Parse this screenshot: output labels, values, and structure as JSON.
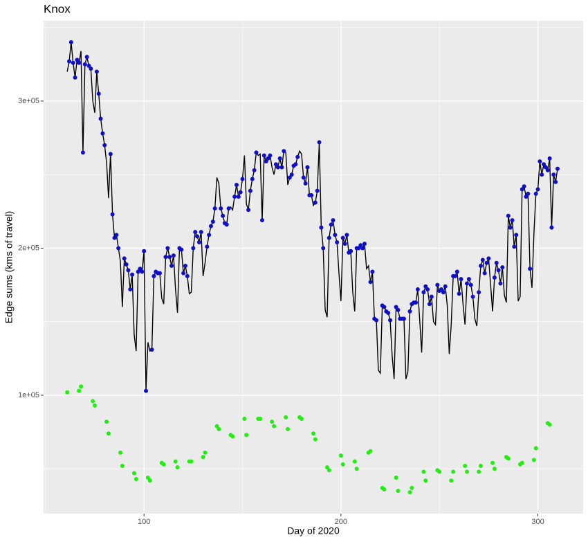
{
  "chart_data": {
    "type": "line",
    "title": "Knox",
    "x_label": "Day of 2020",
    "y_label": "Edge sums (kms of travel)",
    "xlim": [
      49,
      323
    ],
    "xticks": [
      100,
      200,
      300
    ],
    "minor_xticks": [
      50,
      150,
      250
    ],
    "ylim": [
      19500,
      354600
    ],
    "yticks": [
      {
        "value": 100000,
        "label": "1e+05"
      },
      {
        "value": 200000,
        "label": "2e+05"
      },
      {
        "value": 300000,
        "label": "3e+05"
      }
    ],
    "minor_yticks": [
      50000,
      150000,
      250000,
      350000
    ],
    "grid": true,
    "series": [
      {
        "mark": "line",
        "color": "#000000",
        "x": [
          61,
          62,
          63,
          64,
          65,
          66,
          67,
          68,
          69,
          70,
          71,
          72,
          73,
          74,
          75,
          76,
          77,
          78,
          79,
          80,
          81,
          82,
          83,
          84,
          85,
          86,
          87,
          88,
          89,
          90,
          91,
          92,
          93,
          94,
          95,
          96,
          97,
          98,
          99,
          100,
          101,
          102,
          103,
          104,
          105,
          106,
          107,
          108,
          109,
          110,
          111,
          112,
          113,
          114,
          115,
          116,
          117,
          118,
          119,
          120,
          121,
          122,
          123,
          124,
          125,
          126,
          127,
          128,
          129,
          130,
          131,
          132,
          133,
          134,
          135,
          136,
          137,
          138,
          139,
          140,
          141,
          142,
          143,
          144,
          145,
          146,
          147,
          148,
          149,
          150,
          151,
          152,
          153,
          154,
          155,
          156,
          157,
          158,
          159,
          160,
          161,
          162,
          163,
          164,
          165,
          166,
          167,
          168,
          169,
          170,
          171,
          172,
          173,
          174,
          175,
          176,
          177,
          178,
          179,
          180,
          181,
          182,
          183,
          184,
          185,
          186,
          187,
          188,
          189,
          190,
          191,
          192,
          193,
          194,
          195,
          196,
          197,
          198,
          199,
          200,
          201,
          202,
          203,
          204,
          205,
          206,
          207,
          208,
          209,
          210,
          211,
          212,
          213,
          214,
          215,
          216,
          217,
          218,
          219,
          220,
          221,
          222,
          223,
          224,
          225,
          226,
          227,
          228,
          229,
          230,
          231,
          232,
          233,
          234,
          235,
          236,
          237,
          238,
          239,
          240,
          241,
          242,
          243,
          244,
          245,
          246,
          247,
          248,
          249,
          250,
          251,
          252,
          253,
          254,
          255,
          256,
          257,
          258,
          259,
          260,
          261,
          262,
          263,
          264,
          265,
          266,
          267,
          268,
          269,
          270,
          271,
          272,
          273,
          274,
          275,
          276,
          277,
          278,
          279,
          280,
          281,
          282,
          283,
          284,
          285,
          286,
          287,
          288,
          289,
          290,
          291,
          292,
          293,
          294,
          295,
          296,
          297,
          298,
          299,
          300,
          301,
          302,
          303,
          304,
          305,
          306,
          307,
          308,
          309,
          310
        ],
        "values": [
          320000,
          327000,
          340000,
          326000,
          316000,
          328000,
          326000,
          334000,
          265000,
          325000,
          330000,
          324000,
          322000,
          300000,
          292000,
          320000,
          305000,
          288000,
          278000,
          270000,
          258000,
          234000,
          264000,
          223000,
          207000,
          209000,
          200000,
          191000,
          160000,
          193000,
          189000,
          185000,
          172000,
          182000,
          141000,
          130000,
          184000,
          186000,
          184000,
          198000,
          103000,
          136000,
          130000,
          131000,
          181000,
          184000,
          183000,
          183000,
          166000,
          162000,
          194000,
          200000,
          194000,
          188000,
          195000,
          172000,
          156000,
          200000,
          199000,
          183000,
          188000,
          181000,
          169000,
          170000,
          200000,
          211000,
          208000,
          204000,
          211000,
          181000,
          190000,
          201000,
          209000,
          215000,
          218000,
          227000,
          248000,
          244000,
          227000,
          222000,
          217000,
          216000,
          227000,
          228000,
          226000,
          235000,
          243000,
          235000,
          238000,
          247000,
          263000,
          230000,
          226000,
          239000,
          247000,
          253000,
          265000,
          263000,
          264000,
          219000,
          263000,
          259000,
          261000,
          263000,
          255000,
          250000,
          257000,
          255000,
          261000,
          255000,
          266000,
          265000,
          243000,
          248000,
          250000,
          256000,
          257000,
          262000,
          266000,
          264000,
          248000,
          244000,
          255000,
          236000,
          236000,
          229000,
          231000,
          239000,
          272000,
          214000,
          200000,
          158000,
          153000,
          207000,
          216000,
          219000,
          209000,
          204000,
          183000,
          164000,
          207000,
          203000,
          209000,
          197000,
          198000,
          170000,
          157000,
          200000,
          200000,
          202000,
          200000,
          203000,
          186000,
          188000,
          177000,
          184000,
          152000,
          151000,
          117000,
          115000,
          161000,
          160000,
          157000,
          156000,
          151000,
          127000,
          111000,
          160000,
          158000,
          152000,
          152000,
          152000,
          111000,
          116000,
          157000,
          162000,
          163000,
          163000,
          172000,
          151000,
          129000,
          170000,
          174000,
          172000,
          162000,
          167000,
          150000,
          148000,
          175000,
          171000,
          172000,
          170000,
          174000,
          161000,
          128000,
          148000,
          181000,
          181000,
          184000,
          169000,
          179000,
          162000,
          148000,
          176000,
          179000,
          175000,
          167000,
          152000,
          147000,
          170000,
          188000,
          192000,
          183000,
          190000,
          193000,
          175000,
          157000,
          180000,
          190000,
          185000,
          176000,
          187000,
          168000,
          163000,
          222000,
          214000,
          219000,
          201000,
          209000,
          164000,
          167000,
          240000,
          242000,
          235000,
          237000,
          186000,
          173000,
          210000,
          237000,
          240000,
          259000,
          250000,
          257000,
          255000,
          253000,
          261000,
          214000,
          250000,
          245000,
          254000
        ]
      },
      {
        "mark": "point",
        "color": "#0f0fc8",
        "x": [
          62,
          63,
          64,
          65,
          66,
          67,
          69,
          70,
          71,
          72,
          73,
          76,
          77,
          78,
          79,
          80,
          83,
          84,
          85,
          86,
          87,
          90,
          91,
          92,
          93,
          94,
          97,
          98,
          99,
          100,
          101,
          104,
          105,
          106,
          107,
          108,
          111,
          112,
          113,
          114,
          115,
          118,
          119,
          120,
          121,
          122,
          125,
          126,
          127,
          128,
          129,
          132,
          133,
          134,
          135,
          136,
          139,
          140,
          141,
          142,
          143,
          146,
          147,
          148,
          149,
          150,
          153,
          154,
          155,
          156,
          157,
          160,
          161,
          162,
          163,
          164,
          167,
          168,
          169,
          170,
          171,
          174,
          175,
          176,
          177,
          178,
          181,
          182,
          183,
          184,
          185,
          187,
          188,
          189,
          190,
          191,
          194,
          195,
          196,
          197,
          198,
          201,
          202,
          203,
          204,
          205,
          208,
          209,
          210,
          211,
          212,
          215,
          216,
          217,
          218,
          221,
          222,
          223,
          224,
          225,
          228,
          229,
          230,
          231,
          232,
          235,
          236,
          237,
          238,
          239,
          242,
          243,
          244,
          245,
          246,
          249,
          250,
          251,
          252,
          253,
          257,
          258,
          259,
          260,
          261,
          264,
          265,
          266,
          267,
          270,
          271,
          272,
          273,
          274,
          275,
          278,
          279,
          280,
          281,
          282,
          285,
          286,
          287,
          288,
          289,
          292,
          293,
          294,
          295,
          296,
          299,
          300,
          301,
          302,
          303,
          304,
          305,
          306,
          307,
          308,
          309,
          310
        ],
        "values": [
          327000,
          340000,
          326000,
          316000,
          328000,
          326000,
          265000,
          325000,
          330000,
          324000,
          322000,
          320000,
          305000,
          288000,
          278000,
          270000,
          264000,
          223000,
          207000,
          209000,
          200000,
          193000,
          189000,
          185000,
          172000,
          182000,
          184000,
          186000,
          184000,
          198000,
          103000,
          131000,
          181000,
          184000,
          183000,
          183000,
          194000,
          200000,
          194000,
          188000,
          195000,
          200000,
          199000,
          183000,
          188000,
          181000,
          200000,
          211000,
          208000,
          204000,
          211000,
          201000,
          209000,
          215000,
          218000,
          227000,
          227000,
          222000,
          217000,
          216000,
          227000,
          235000,
          243000,
          235000,
          238000,
          247000,
          226000,
          239000,
          247000,
          253000,
          265000,
          219000,
          263000,
          259000,
          261000,
          263000,
          257000,
          255000,
          261000,
          255000,
          266000,
          248000,
          250000,
          256000,
          257000,
          262000,
          248000,
          244000,
          255000,
          236000,
          236000,
          231000,
          239000,
          272000,
          214000,
          200000,
          207000,
          216000,
          219000,
          209000,
          204000,
          207000,
          203000,
          209000,
          197000,
          198000,
          200000,
          200000,
          202000,
          200000,
          203000,
          177000,
          184000,
          152000,
          151000,
          161000,
          160000,
          157000,
          156000,
          151000,
          160000,
          158000,
          152000,
          152000,
          152000,
          157000,
          162000,
          163000,
          163000,
          172000,
          170000,
          174000,
          172000,
          162000,
          167000,
          175000,
          171000,
          172000,
          170000,
          174000,
          181000,
          181000,
          184000,
          169000,
          179000,
          176000,
          179000,
          175000,
          167000,
          170000,
          188000,
          192000,
          183000,
          190000,
          193000,
          180000,
          190000,
          185000,
          176000,
          187000,
          222000,
          214000,
          219000,
          201000,
          209000,
          240000,
          242000,
          235000,
          237000,
          186000,
          237000,
          240000,
          259000,
          250000,
          257000,
          255000,
          253000,
          261000,
          214000,
          250000,
          245000,
          254000
        ]
      },
      {
        "mark": "point",
        "color": "#22ee11",
        "x": [
          61,
          67,
          68,
          74,
          75,
          81,
          82,
          88,
          89,
          95,
          96,
          102,
          103,
          109,
          110,
          116,
          117,
          123,
          124,
          130,
          131,
          137,
          138,
          144,
          145,
          151,
          152,
          158,
          159,
          165,
          166,
          172,
          173,
          179,
          180,
          186,
          187,
          193,
          194,
          200,
          201,
          207,
          208,
          214,
          215,
          221,
          222,
          228,
          229,
          235,
          236,
          242,
          243,
          249,
          250,
          256,
          257,
          263,
          264,
          270,
          271,
          277,
          278,
          284,
          285,
          291,
          292,
          298,
          299,
          305,
          306
        ],
        "values": [
          102000,
          103000,
          106000,
          96000,
          93000,
          82000,
          74000,
          61000,
          52000,
          47000,
          43000,
          44000,
          42000,
          54000,
          53000,
          55000,
          51000,
          55000,
          55000,
          58000,
          61000,
          79000,
          77000,
          73000,
          72000,
          84000,
          73000,
          84000,
          84000,
          82000,
          79000,
          85000,
          77000,
          85000,
          84000,
          74000,
          70000,
          51000,
          49000,
          59000,
          53000,
          55000,
          50000,
          61000,
          62000,
          37000,
          36000,
          44000,
          35000,
          34000,
          37000,
          48000,
          42000,
          49000,
          48000,
          42000,
          48000,
          52000,
          48000,
          48000,
          52000,
          54000,
          50000,
          58000,
          57000,
          53000,
          54000,
          56000,
          64000,
          81000,
          80000
        ]
      }
    ]
  }
}
